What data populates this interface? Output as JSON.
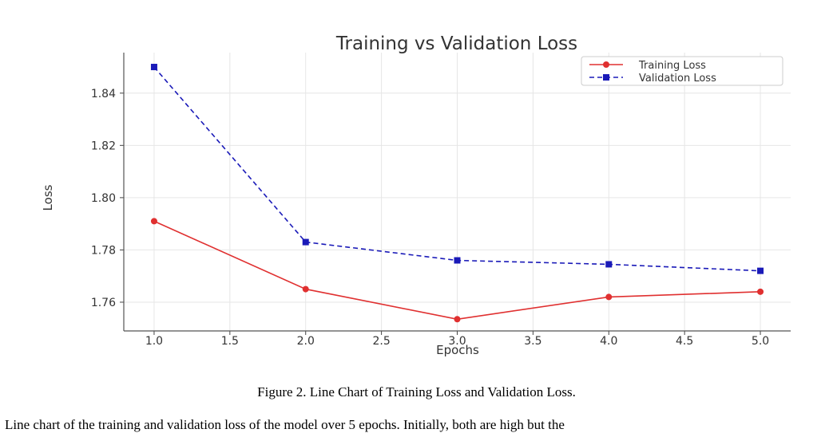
{
  "chart_data": {
    "type": "line",
    "title": "Training vs Validation Loss",
    "xlabel": "Epochs",
    "ylabel": "Loss",
    "x": [
      1,
      2,
      3,
      4,
      5
    ],
    "xlim": [
      0.8,
      5.2
    ],
    "ylim": [
      1.749,
      1.8555
    ],
    "xticks": [
      "1.0",
      "1.5",
      "2.0",
      "2.5",
      "3.0",
      "3.5",
      "4.0",
      "4.5",
      "5.0"
    ],
    "yticks": [
      "1.76",
      "1.78",
      "1.80",
      "1.82",
      "1.84"
    ],
    "grid": true,
    "legend_position": "top-right",
    "series": [
      {
        "name": "Training Loss",
        "values": [
          1.791,
          1.765,
          1.7535,
          1.762,
          1.764
        ],
        "color": "#e03030",
        "linestyle": "solid",
        "marker": "circle"
      },
      {
        "name": "Validation Loss",
        "values": [
          1.85,
          1.783,
          1.776,
          1.7745,
          1.772
        ],
        "color": "#1a1ab8",
        "linestyle": "dashed",
        "marker": "square"
      }
    ]
  },
  "caption": "Figure 2. Line Chart of Training Loss and Validation Loss.",
  "body_text": "Line chart of the training and validation loss of the model over 5 epochs. Initially, both are high but the"
}
